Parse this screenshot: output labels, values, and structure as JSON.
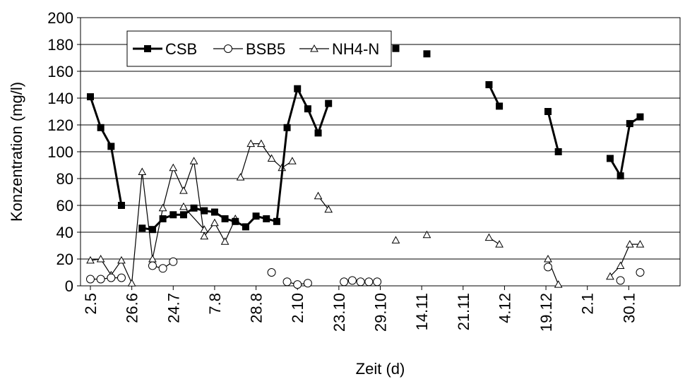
{
  "chart_data": {
    "type": "line",
    "title": "",
    "xlabel": "Zeit (d)",
    "ylabel": "Konzentration (mg/l)",
    "ylim": [
      0,
      200
    ],
    "yticks": [
      0,
      20,
      40,
      60,
      80,
      100,
      120,
      140,
      160,
      180,
      200
    ],
    "grid": "horizontal",
    "legend": "top-left",
    "xlim": [
      0,
      56
    ],
    "xticks": [
      {
        "x": 0,
        "label": "2.5"
      },
      {
        "x": 4,
        "label": "26.6"
      },
      {
        "x": 8,
        "label": "24.7"
      },
      {
        "x": 12,
        "label": "7.8"
      },
      {
        "x": 16,
        "label": "28.8"
      },
      {
        "x": 20,
        "label": "2.10"
      },
      {
        "x": 24,
        "label": "23.10"
      },
      {
        "x": 28,
        "label": "29.10"
      },
      {
        "x": 32,
        "label": "14.11"
      },
      {
        "x": 36,
        "label": "21.11"
      },
      {
        "x": 40,
        "label": "4.12"
      },
      {
        "x": 44,
        "label": "19.12"
      },
      {
        "x": 48,
        "label": "2.1"
      },
      {
        "x": 52,
        "label": "30.1"
      }
    ],
    "series": [
      {
        "name": "CSB",
        "color": "#000000",
        "marker": "filled-square",
        "segments": [
          [
            [
              0,
              141
            ],
            [
              1,
              118
            ],
            [
              2,
              104
            ],
            [
              3,
              60
            ]
          ],
          [
            [
              5,
              43
            ],
            [
              6,
              42
            ],
            [
              7,
              50
            ],
            [
              8,
              53
            ],
            [
              9,
              53
            ],
            [
              10,
              58
            ],
            [
              11,
              56
            ],
            [
              12,
              55
            ],
            [
              13,
              50
            ],
            [
              14,
              48
            ],
            [
              15,
              44
            ],
            [
              16,
              52
            ],
            [
              17,
              50
            ],
            [
              18,
              48
            ],
            [
              19,
              118
            ],
            [
              20,
              147
            ],
            [
              21,
              132
            ],
            [
              22,
              114
            ],
            [
              23,
              136
            ]
          ],
          [
            [
              29.5,
              177
            ]
          ],
          [
            [
              32.5,
              173
            ]
          ],
          [
            [
              38.5,
              150
            ],
            [
              39.5,
              134
            ]
          ],
          [
            [
              44.2,
              130
            ],
            [
              45.2,
              100
            ]
          ],
          [
            [
              50.2,
              95
            ],
            [
              51.2,
              82
            ],
            [
              52.1,
              121
            ],
            [
              53.1,
              126
            ]
          ]
        ]
      },
      {
        "name": "BSB5",
        "color": "#000000",
        "marker": "open-circle",
        "segments": [
          [
            [
              0,
              5
            ],
            [
              1,
              5
            ],
            [
              2,
              6
            ],
            [
              3,
              6
            ]
          ],
          [
            [
              6,
              15
            ],
            [
              7,
              13
            ],
            [
              8,
              18
            ]
          ],
          [
            [
              17.5,
              10
            ]
          ],
          [
            [
              19,
              3
            ],
            [
              20,
              1
            ],
            [
              21,
              2
            ]
          ],
          [
            [
              24.5,
              3
            ],
            [
              25.3,
              4
            ],
            [
              26.1,
              3
            ],
            [
              26.9,
              3
            ],
            [
              27.7,
              3
            ]
          ],
          [
            [
              44.2,
              14
            ]
          ],
          [
            [
              51.2,
              4
            ]
          ],
          [
            [
              53.1,
              10
            ]
          ]
        ]
      },
      {
        "name": "NH4-N",
        "color": "#000000",
        "marker": "open-triangle",
        "segments": [
          [
            [
              0,
              19
            ],
            [
              1,
              20
            ],
            [
              2,
              8
            ],
            [
              3,
              19
            ],
            [
              4,
              2
            ],
            [
              5,
              85
            ],
            [
              6,
              20
            ],
            [
              7,
              58
            ],
            [
              8,
              88
            ],
            [
              9,
              71
            ],
            [
              10,
              93
            ],
            [
              11,
              37
            ],
            [
              12,
              47
            ],
            [
              13,
              33
            ],
            [
              14,
              50
            ]
          ],
          [
            [
              9,
              59
            ],
            [
              11,
              42
            ]
          ],
          [
            [
              14.5,
              81
            ],
            [
              15.5,
              106
            ],
            [
              16.5,
              106
            ],
            [
              17.5,
              95
            ],
            [
              18.5,
              88
            ],
            [
              19.5,
              93
            ]
          ],
          [
            [
              22,
              67
            ],
            [
              23,
              57
            ]
          ],
          [
            [
              29.5,
              34
            ]
          ],
          [
            [
              32.5,
              38
            ]
          ],
          [
            [
              38.5,
              36
            ],
            [
              39.5,
              31
            ]
          ],
          [
            [
              44.2,
              20
            ],
            [
              45.2,
              1
            ]
          ],
          [
            [
              50.2,
              7
            ],
            [
              51.2,
              15
            ],
            [
              52.1,
              31
            ],
            [
              53.1,
              31
            ]
          ]
        ]
      }
    ]
  }
}
